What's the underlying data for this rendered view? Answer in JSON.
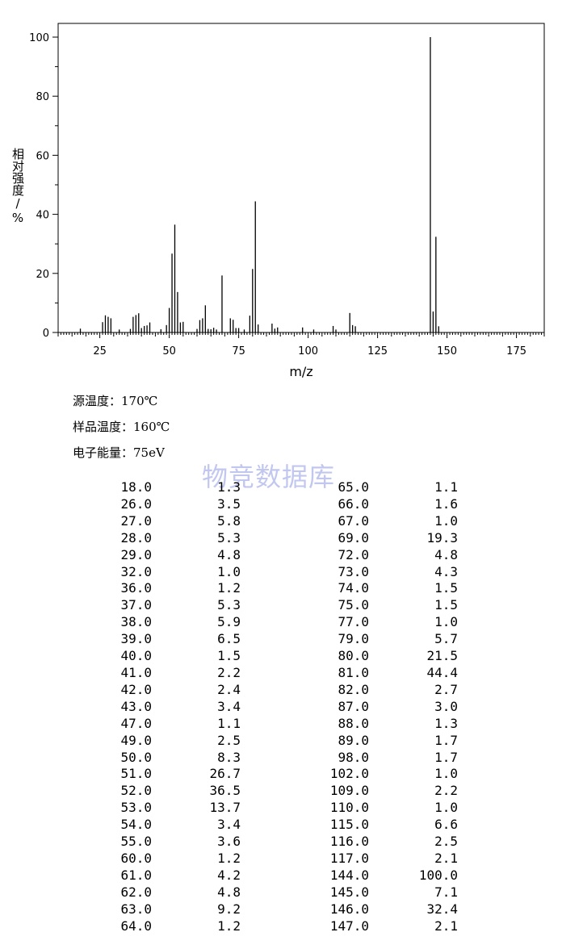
{
  "chart_data": {
    "type": "bar",
    "ylabel": "相对强度 / %",
    "xlabel": "m/z",
    "xlim": [
      10,
      185
    ],
    "ylim": [
      0,
      100
    ],
    "x_ticks": [
      25,
      50,
      75,
      100,
      125,
      150,
      175
    ],
    "y_ticks": [
      0,
      20,
      40,
      60,
      80,
      100
    ],
    "grid": false,
    "bar_color": "#000000",
    "x": [
      18,
      26,
      27,
      28,
      29,
      32,
      36,
      37,
      38,
      39,
      40,
      41,
      42,
      43,
      47,
      49,
      50,
      51,
      52,
      53,
      54,
      55,
      60,
      61,
      62,
      63,
      64,
      65,
      66,
      67,
      69,
      72,
      73,
      74,
      75,
      77,
      79,
      80,
      81,
      82,
      87,
      88,
      89,
      98,
      102,
      109,
      110,
      115,
      116,
      117,
      144,
      145,
      146,
      147
    ],
    "values": [
      1.3,
      3.5,
      5.8,
      5.3,
      4.8,
      1.0,
      1.2,
      5.3,
      5.9,
      6.5,
      1.5,
      2.2,
      2.4,
      3.4,
      1.1,
      2.5,
      8.3,
      26.7,
      36.5,
      13.7,
      3.4,
      3.6,
      1.2,
      4.2,
      4.8,
      9.2,
      1.2,
      1.1,
      1.6,
      1.0,
      19.3,
      4.8,
      4.3,
      1.5,
      1.5,
      1.0,
      5.7,
      21.5,
      44.4,
      2.7,
      3.0,
      1.3,
      1.7,
      1.7,
      1.0,
      2.2,
      1.0,
      6.6,
      2.5,
      2.1,
      100.0,
      7.1,
      32.4,
      2.1
    ]
  },
  "ylabel_text": "相对强度/%",
  "conditions": {
    "source_temp": "源温度：170℃",
    "sample_temp": "样品温度：160℃",
    "electron_energy": "电子能量：75eV"
  },
  "watermark": "物竞数据库",
  "peak_table": {
    "left": [
      [
        "18.0",
        "1.3"
      ],
      [
        "26.0",
        "3.5"
      ],
      [
        "27.0",
        "5.8"
      ],
      [
        "28.0",
        "5.3"
      ],
      [
        "29.0",
        "4.8"
      ],
      [
        "32.0",
        "1.0"
      ],
      [
        "36.0",
        "1.2"
      ],
      [
        "37.0",
        "5.3"
      ],
      [
        "38.0",
        "5.9"
      ],
      [
        "39.0",
        "6.5"
      ],
      [
        "40.0",
        "1.5"
      ],
      [
        "41.0",
        "2.2"
      ],
      [
        "42.0",
        "2.4"
      ],
      [
        "43.0",
        "3.4"
      ],
      [
        "47.0",
        "1.1"
      ],
      [
        "49.0",
        "2.5"
      ],
      [
        "50.0",
        "8.3"
      ],
      [
        "51.0",
        "26.7"
      ],
      [
        "52.0",
        "36.5"
      ],
      [
        "53.0",
        "13.7"
      ],
      [
        "54.0",
        "3.4"
      ],
      [
        "55.0",
        "3.6"
      ],
      [
        "60.0",
        "1.2"
      ],
      [
        "61.0",
        "4.2"
      ],
      [
        "62.0",
        "4.8"
      ],
      [
        "63.0",
        "9.2"
      ],
      [
        "64.0",
        "1.2"
      ]
    ],
    "right": [
      [
        "65.0",
        "1.1"
      ],
      [
        "66.0",
        "1.6"
      ],
      [
        "67.0",
        "1.0"
      ],
      [
        "69.0",
        "19.3"
      ],
      [
        "72.0",
        "4.8"
      ],
      [
        "73.0",
        "4.3"
      ],
      [
        "74.0",
        "1.5"
      ],
      [
        "75.0",
        "1.5"
      ],
      [
        "77.0",
        "1.0"
      ],
      [
        "79.0",
        "5.7"
      ],
      [
        "80.0",
        "21.5"
      ],
      [
        "81.0",
        "44.4"
      ],
      [
        "82.0",
        "2.7"
      ],
      [
        "87.0",
        "3.0"
      ],
      [
        "88.0",
        "1.3"
      ],
      [
        "89.0",
        "1.7"
      ],
      [
        "98.0",
        "1.7"
      ],
      [
        "102.0",
        "1.0"
      ],
      [
        "109.0",
        "2.2"
      ],
      [
        "110.0",
        "1.0"
      ],
      [
        "115.0",
        "6.6"
      ],
      [
        "116.0",
        "2.5"
      ],
      [
        "117.0",
        "2.1"
      ],
      [
        "144.0",
        "100.0"
      ],
      [
        "145.0",
        "7.1"
      ],
      [
        "146.0",
        "32.4"
      ],
      [
        "147.0",
        "2.1"
      ]
    ]
  }
}
